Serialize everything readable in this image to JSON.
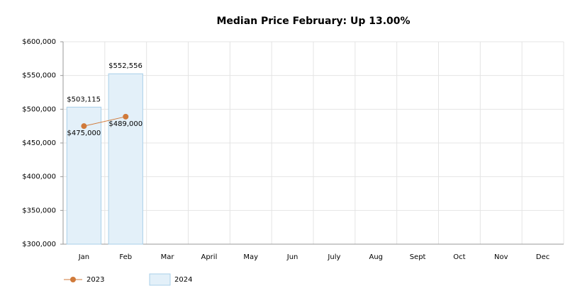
{
  "chart_data": {
    "type": "combo",
    "title": "Median Price February: Up 13.00%",
    "categories": [
      "Jan",
      "Feb",
      "Mar",
      "April",
      "May",
      "Jun",
      "July",
      "Aug",
      "Sept",
      "Oct",
      "Nov",
      "Dec"
    ],
    "series": [
      {
        "name": "2023",
        "type": "line",
        "color": "#d07a3a",
        "values": [
          475000,
          489000,
          null,
          null,
          null,
          null,
          null,
          null,
          null,
          null,
          null,
          null
        ],
        "value_labels": [
          "$475,000",
          "$489,000",
          null,
          null,
          null,
          null,
          null,
          null,
          null,
          null,
          null,
          null
        ]
      },
      {
        "name": "2024",
        "type": "bar",
        "color": "#e3f0f9",
        "values": [
          503115,
          552556,
          null,
          null,
          null,
          null,
          null,
          null,
          null,
          null,
          null,
          null
        ],
        "value_labels": [
          "$503,115",
          "$552,556",
          null,
          null,
          null,
          null,
          null,
          null,
          null,
          null,
          null,
          null
        ]
      }
    ],
    "ylim": [
      300000,
      600000
    ],
    "yticks": [
      {
        "value": 300000,
        "label": "$300,000"
      },
      {
        "value": 350000,
        "label": "$350,000"
      },
      {
        "value": 400000,
        "label": "$400,000"
      },
      {
        "value": 450000,
        "label": "$450,000"
      },
      {
        "value": 500000,
        "label": "$500,000"
      },
      {
        "value": 550000,
        "label": "$550,000"
      },
      {
        "value": 600000,
        "label": "$600,000"
      }
    ],
    "grid": true,
    "legend": "bottom-left"
  }
}
